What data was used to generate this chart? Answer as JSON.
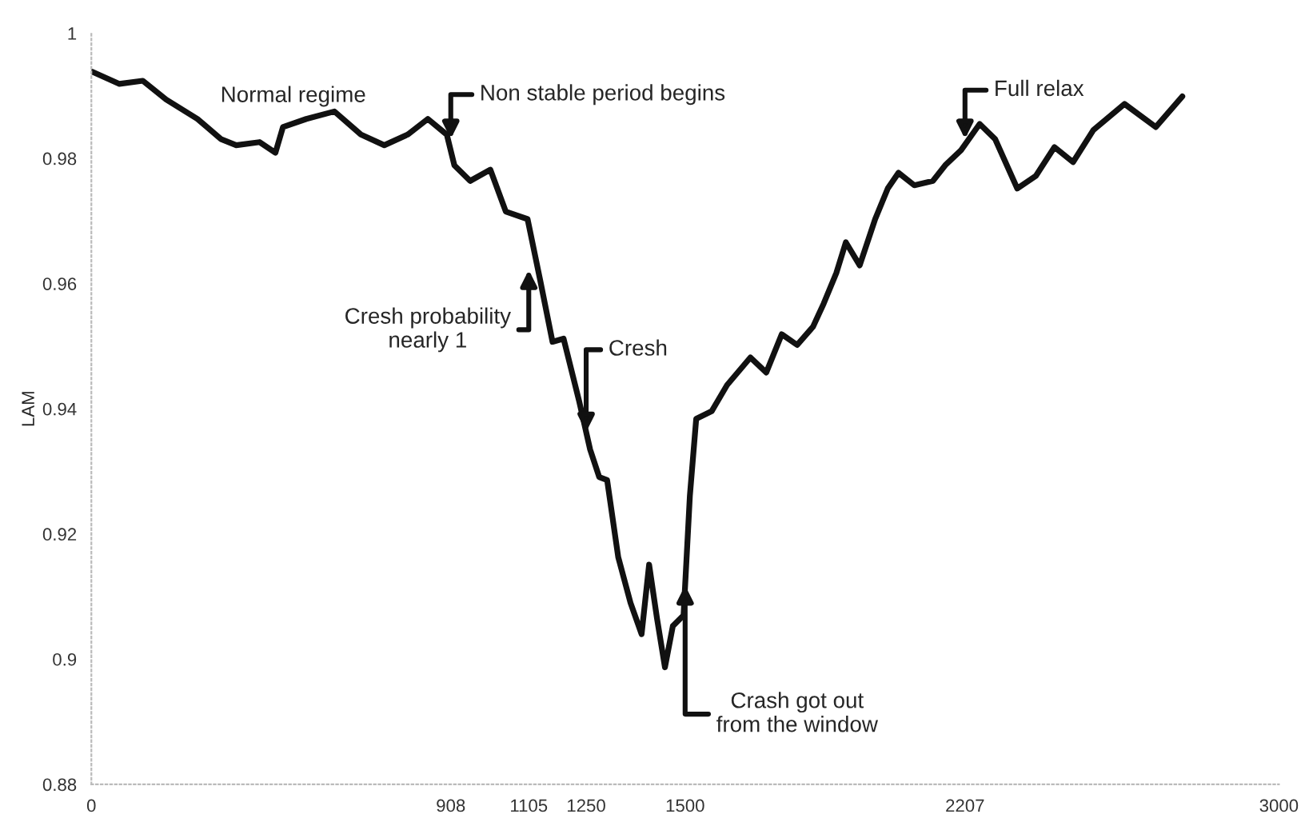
{
  "chart_data": {
    "type": "line",
    "ylabel": "LAM",
    "xlim": [
      0,
      3000
    ],
    "ylim": [
      0.88,
      1
    ],
    "xticks": [
      0,
      908,
      1105,
      1250,
      1500,
      2207,
      3000
    ],
    "yticks": [
      0.88,
      0.9,
      0.92,
      0.94,
      0.96,
      0.98,
      1
    ],
    "grid": false,
    "marker": "none",
    "line_style": "solid",
    "series": [
      {
        "color": "#111111",
        "x": [
          0,
          71,
          130,
          189,
          268,
          327,
          366,
          425,
          465,
          484,
          543,
          614,
          681,
          740,
          799,
          850,
          898,
          917,
          957,
          1008,
          1047,
          1102,
          1134,
          1165,
          1193,
          1232,
          1260,
          1283,
          1303,
          1331,
          1362,
          1390,
          1409,
          1429,
          1449,
          1469,
          1496,
          1512,
          1528,
          1567,
          1606,
          1665,
          1705,
          1744,
          1783,
          1823,
          1850,
          1882,
          1906,
          1941,
          1980,
          2012,
          2039,
          2079,
          2126,
          2157,
          2197,
          2244,
          2283,
          2339,
          2386,
          2433,
          2480,
          2531,
          2610,
          2689,
          2756
        ],
        "values": [
          0.9939,
          0.9919,
          0.9924,
          0.9894,
          0.9863,
          0.9831,
          0.9821,
          0.9826,
          0.9809,
          0.985,
          0.9863,
          0.9875,
          0.9838,
          0.9821,
          0.9838,
          0.9863,
          0.9838,
          0.9789,
          0.9764,
          0.9782,
          0.9715,
          0.9703,
          0.9605,
          0.9507,
          0.9512,
          0.9413,
          0.9335,
          0.9291,
          0.9286,
          0.9163,
          0.909,
          0.904,
          0.9151,
          0.9065,
          0.8987,
          0.9053,
          0.907,
          0.9261,
          0.9384,
          0.9396,
          0.9438,
          0.9482,
          0.9458,
          0.9519,
          0.9502,
          0.9531,
          0.9568,
          0.9617,
          0.9666,
          0.9629,
          0.9703,
          0.9752,
          0.9777,
          0.9757,
          0.9764,
          0.9789,
          0.9813,
          0.9855,
          0.9831,
          0.9752,
          0.9772,
          0.9818,
          0.9794,
          0.9845,
          0.9887,
          0.985,
          0.9899
        ]
      }
    ],
    "annotations": [
      "Normal regime",
      {
        "text": "Non stable period begins",
        "x": 908,
        "y": 0.9831
      },
      {
        "text": "Cresh probability\nnearly 1",
        "x": 1105,
        "y": 0.9622
      },
      {
        "text": "Cresh",
        "x": 1250,
        "y": 0.9363
      },
      {
        "text": "Crash got out\nfrom the window",
        "x": 1500,
        "y": 0.9118
      },
      {
        "text": "Full relax",
        "x": 2207,
        "y": 0.9831
      }
    ]
  }
}
